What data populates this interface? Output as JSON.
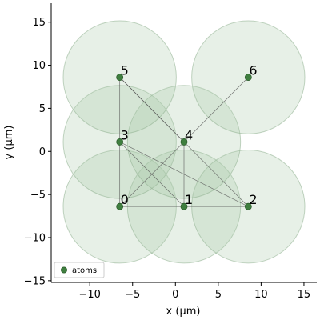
{
  "chart_data": {
    "type": "scatter",
    "title": "",
    "xlabel": "x (μm)",
    "ylabel": "y (μm)",
    "xlim": [
      -14.5,
      16.5
    ],
    "ylim": [
      -15.2,
      17.2
    ],
    "xticks": [
      -10,
      -5,
      0,
      5,
      10,
      15
    ],
    "yticks": [
      -15,
      -10,
      -5,
      0,
      5,
      10,
      15
    ],
    "grid": false,
    "legend": {
      "position": "lower-left",
      "entries": [
        "atoms"
      ]
    },
    "colors": {
      "atom": "#3f7f3f",
      "atom_edge": "#2e5e2e",
      "blockade_fill": "#a8c8a8",
      "blockade_edge": "#8fb08f",
      "bond": "#555555"
    },
    "blockade_radius": 6.6,
    "atoms": [
      {
        "label": "0",
        "x": -6.5,
        "y": -6.4
      },
      {
        "label": "1",
        "x": 1.0,
        "y": -6.4
      },
      {
        "label": "2",
        "x": 8.5,
        "y": -6.4
      },
      {
        "label": "3",
        "x": -6.5,
        "y": 1.1
      },
      {
        "label": "4",
        "x": 1.0,
        "y": 1.1
      },
      {
        "label": "5",
        "x": -6.5,
        "y": 8.6
      },
      {
        "label": "6",
        "x": 8.5,
        "y": 8.6
      }
    ],
    "bonds": [
      [
        0,
        1
      ],
      [
        1,
        2
      ],
      [
        0,
        3
      ],
      [
        0,
        4
      ],
      [
        1,
        3
      ],
      [
        1,
        4
      ],
      [
        2,
        4
      ],
      [
        3,
        4
      ],
      [
        3,
        5
      ],
      [
        4,
        5
      ],
      [
        4,
        6
      ],
      [
        2,
        3
      ],
      [
        5,
        4
      ]
    ]
  }
}
